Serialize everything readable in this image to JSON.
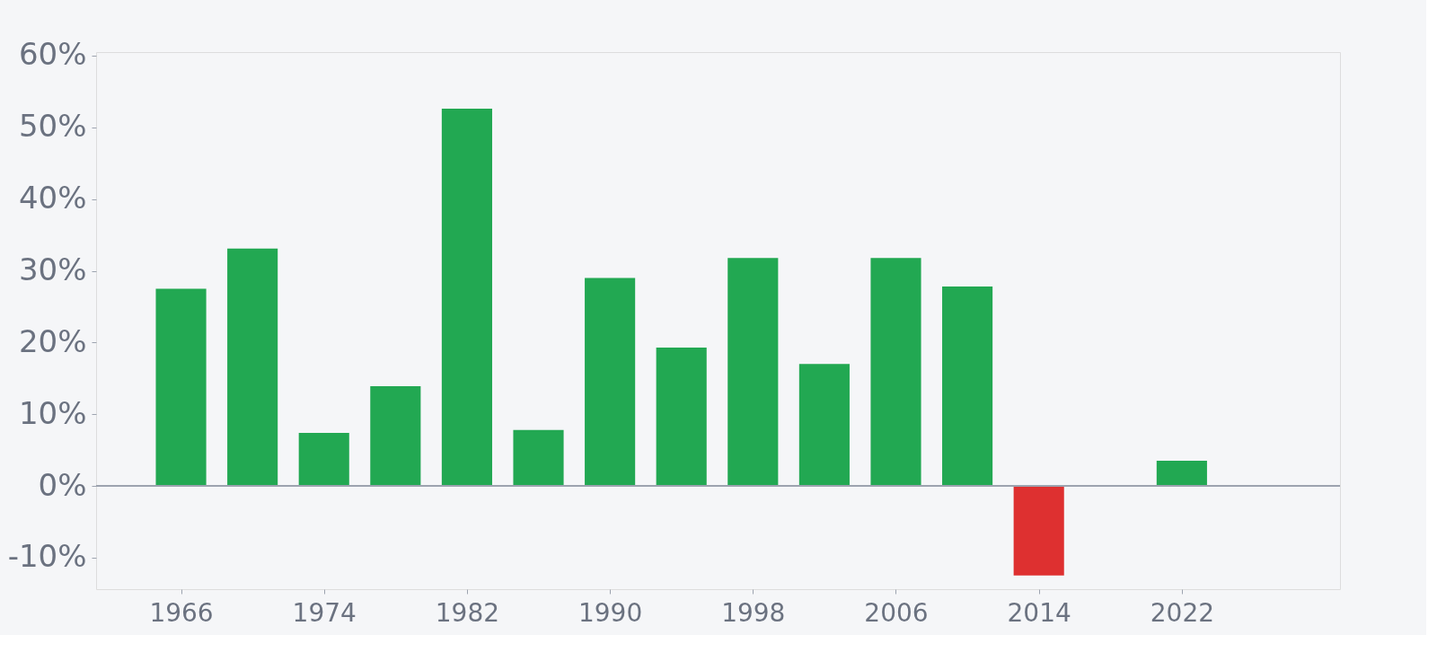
{
  "chart_data": {
    "type": "bar",
    "x": [
      1966,
      1970,
      1974,
      1978,
      1982,
      1986,
      1990,
      1994,
      1998,
      2002,
      2006,
      2010,
      2014,
      2018,
      2022
    ],
    "values": [
      27.5,
      33.1,
      7.4,
      13.9,
      52.6,
      7.8,
      29.0,
      19.3,
      31.8,
      17.0,
      31.8,
      27.8,
      -12.5,
      null,
      3.5
    ],
    "colors": [
      "#22a852",
      "#22a852",
      "#22a852",
      "#22a852",
      "#22a852",
      "#22a852",
      "#22a852",
      "#22a852",
      "#22a852",
      "#22a852",
      "#22a852",
      "#22a852",
      "#de3030",
      "#22a852",
      "#22a852"
    ],
    "xlim": [
      1961.5,
      2030.6
    ],
    "xticks": [
      1966,
      1974,
      1982,
      1990,
      1998,
      2006,
      2014,
      2022
    ],
    "ylim": [
      -14.4,
      60.5
    ],
    "yticks": [
      {
        "value": -10,
        "label": "-10%"
      },
      {
        "value": 0,
        "label": "0%"
      },
      {
        "value": 10,
        "label": "10%"
      },
      {
        "value": 20,
        "label": "20%"
      },
      {
        "value": 30,
        "label": "30%"
      },
      {
        "value": 40,
        "label": "40%"
      },
      {
        "value": 50,
        "label": "50%"
      },
      {
        "value": 60,
        "label": "60%"
      }
    ],
    "ref_lines": [
      {
        "axis": "y",
        "value": 0,
        "color": "#9ca3af"
      }
    ],
    "grid": false
  }
}
